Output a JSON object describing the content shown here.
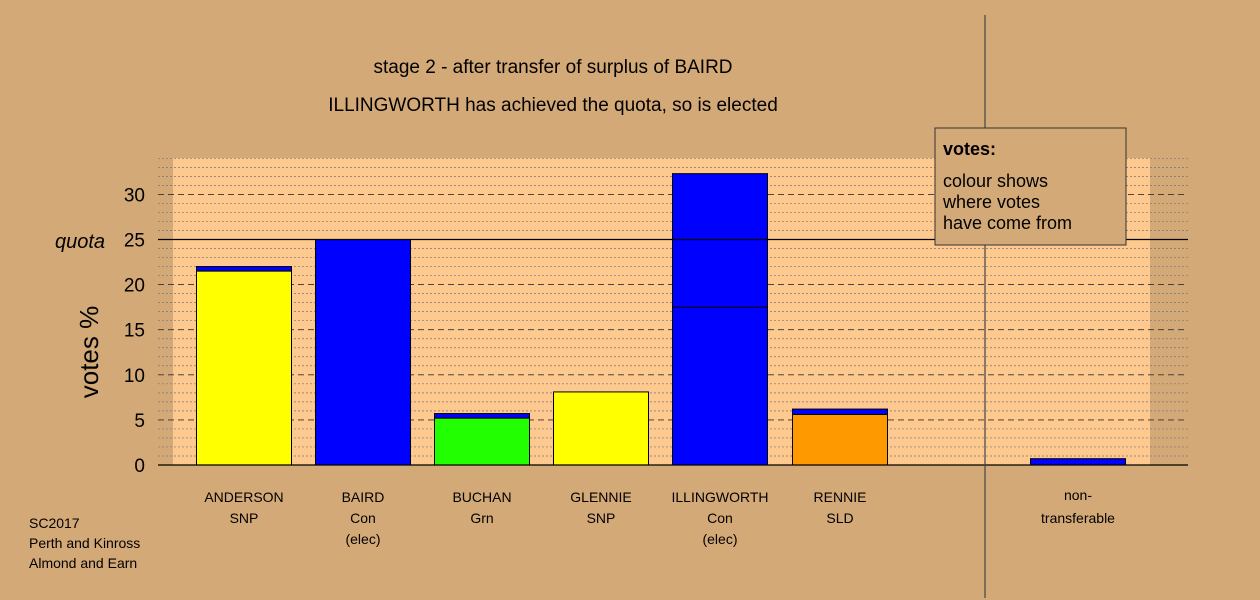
{
  "chart_data": {
    "type": "bar",
    "stacked": true,
    "title": "stage 2 - after transfer of surplus of BAIRD",
    "subtitle": "ILLINGWORTH has achieved the quota, so is elected",
    "ylabel": "votes %",
    "ylim": [
      0,
      34
    ],
    "yticks": [
      0,
      5,
      10,
      15,
      20,
      25,
      30
    ],
    "quota": 25,
    "quota_label": "quota",
    "candidates": [
      {
        "name": "ANDERSON",
        "party": "SNP",
        "status": "",
        "segments": [
          {
            "value": 21.5,
            "color": "#ffff00"
          },
          {
            "value": 0.5,
            "color": "#0000ff"
          }
        ]
      },
      {
        "name": "BAIRD",
        "party": "Con",
        "status": "(elec)",
        "segments": [
          {
            "value": 25.0,
            "color": "#0000ff"
          }
        ]
      },
      {
        "name": "BUCHAN",
        "party": "Grn",
        "status": "",
        "segments": [
          {
            "value": 5.2,
            "color": "#22ff00"
          },
          {
            "value": 0.5,
            "color": "#0000ff"
          }
        ]
      },
      {
        "name": "GLENNIE",
        "party": "SNP",
        "status": "",
        "segments": [
          {
            "value": 8.1,
            "color": "#ffff00"
          }
        ]
      },
      {
        "name": "ILLINGWORTH",
        "party": "Con",
        "status": "(elec)",
        "segments": [
          {
            "value": 17.5,
            "color": "#0000ff"
          },
          {
            "value": 14.8,
            "color": "#0000ff"
          }
        ]
      },
      {
        "name": "RENNIE",
        "party": "SLD",
        "status": "",
        "segments": [
          {
            "value": 5.6,
            "color": "#ff9900"
          },
          {
            "value": 0.6,
            "color": "#0000ff"
          }
        ]
      }
    ],
    "nontransferable": {
      "label_line1": "non-",
      "label_line2": "transferable",
      "segments": [
        {
          "value": 0.7,
          "color": "#0000ff"
        }
      ]
    },
    "legend": {
      "title": "votes:",
      "lines": [
        "colour shows",
        "where votes",
        "have come from"
      ],
      "placement": "top-right"
    },
    "grid": true
  },
  "footer": {
    "lines": [
      "SC2017",
      "Perth and Kinross",
      "Almond and Earn"
    ]
  },
  "colors": {
    "background": "#d4a978",
    "plot_background": "#fdc98f",
    "bar_outline": "#000000"
  }
}
